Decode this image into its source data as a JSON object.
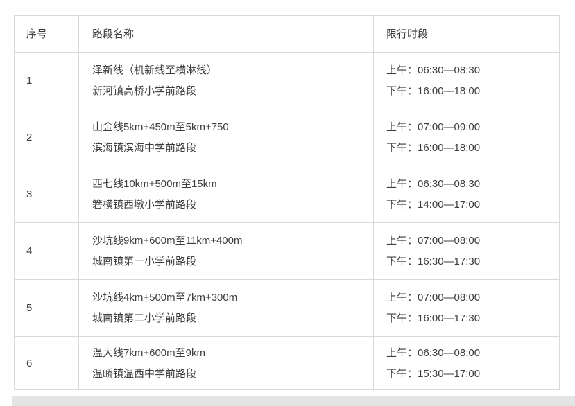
{
  "table": {
    "headers": [
      "序号",
      "路段名称",
      "限行时段"
    ],
    "rows": [
      {
        "no": "1",
        "road": "泽新线（机新线至横淋线）",
        "location": "新河镇高桥小学前路段",
        "morning": "上午：06:30—08:30",
        "afternoon": "下午：16:00—18:00"
      },
      {
        "no": "2",
        "road": "山金线5km+450m至5km+750",
        "location": "滨海镇滨海中学前路段",
        "morning": "上午：07:00—09:00",
        "afternoon": "下午：16:00—18:00"
      },
      {
        "no": "3",
        "road": "西七线10km+500m至15km",
        "location": "箬横镇西墩小学前路段",
        "morning": "上午：06:30—08:30",
        "afternoon": "下午：14:00—17:00"
      },
      {
        "no": "4",
        "road": "沙坑线9km+600m至11km+400m",
        "location": "城南镇第一小学前路段",
        "morning": "上午：07:00—08:00",
        "afternoon": "下午：16:30—17:30"
      },
      {
        "no": "5",
        "road": "沙坑线4km+500m至7km+300m",
        "location": "城南镇第二小学前路段",
        "morning": "上午：07:00—08:00",
        "afternoon": "下午：16:00—17:30"
      },
      {
        "no": "6",
        "road": "温大线7km+600m至9km",
        "location": "温峤镇温西中学前路段",
        "morning": "上午：06:30—08:00",
        "afternoon": "下午：15:30—17:00"
      }
    ]
  },
  "colors": {
    "border": "#d9d9d9",
    "text": "#3d3d3d",
    "bottom_band": "#e4e4e4",
    "background": "#ffffff"
  }
}
